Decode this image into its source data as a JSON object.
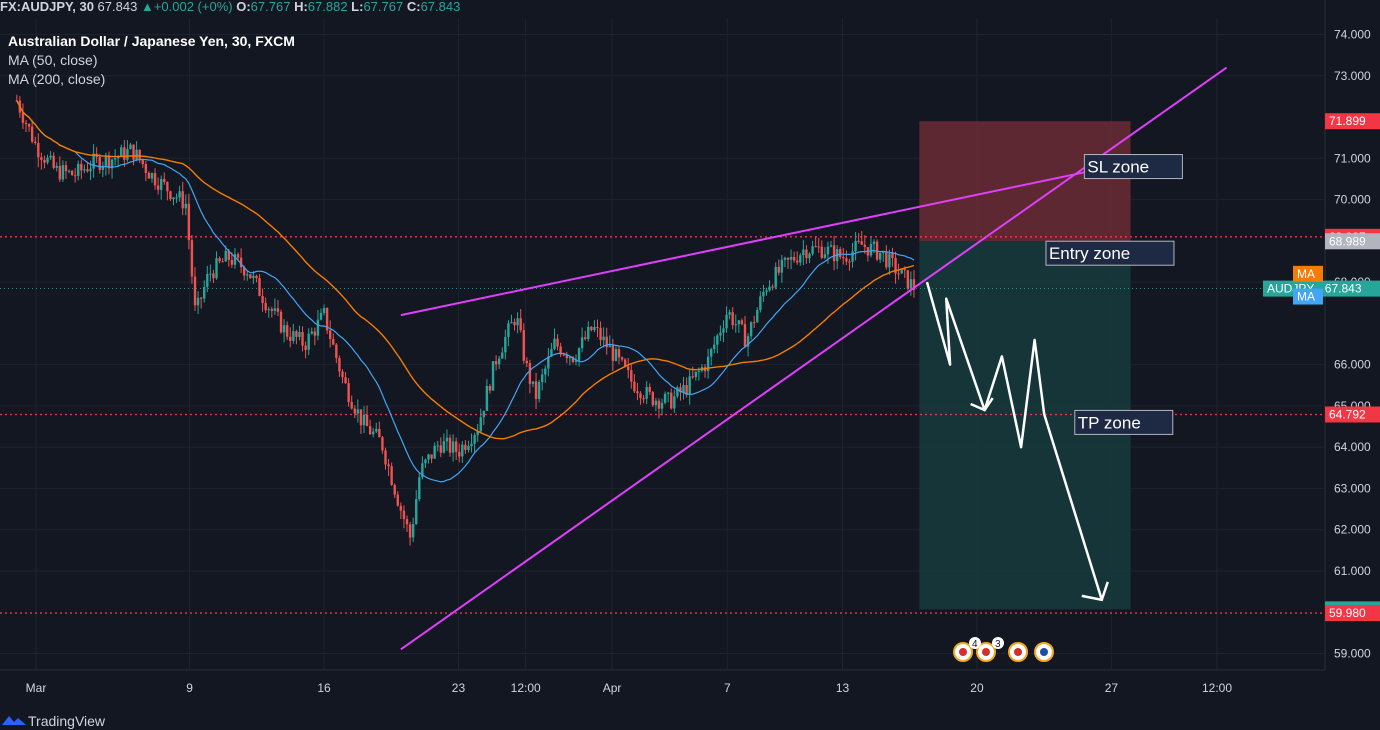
{
  "header": {
    "symbol": "FX:AUDJPY, 30",
    "last": "67.843",
    "change": "+0.002 (+0%)",
    "o_label": "O:",
    "o": "67.767",
    "h_label": "H:",
    "h": "67.882",
    "l_label": "L:",
    "l": "67.767",
    "c_label": "C:",
    "c": "67.843"
  },
  "legend": {
    "title": "Australian Dollar / Japanese Yen, 30, FXCM",
    "ma50": "MA (50, close)",
    "ma200": "MA (200, close)"
  },
  "footer": {
    "brand": "TradingView"
  },
  "colors": {
    "background": "#131722",
    "up": "#26a69a",
    "down": "#ef5350",
    "trendline": "#e040fb",
    "ma50": "#f57c00",
    "ma200": "#42a5f5",
    "level": "#f23645",
    "stop_zone": "#6b2c34",
    "target_zone": "#16393b"
  },
  "chart_data": {
    "type": "candlestick",
    "symbol": "AUDJPY",
    "timeframe": "30",
    "y_range": [
      58.6,
      74.4
    ],
    "y_ticks": [
      "74.000",
      "73.000",
      "71.000",
      "70.000",
      "68.000",
      "66.000",
      "65.000",
      "64.000",
      "63.000",
      "62.000",
      "61.000",
      "59.000"
    ],
    "y_tick_values": [
      74,
      73,
      71,
      70,
      68,
      66,
      65,
      64,
      63,
      62,
      61,
      59
    ],
    "x_ticks": [
      "Mar",
      "9",
      "16",
      "23",
      "12:00",
      "Apr",
      "7",
      "13",
      "20",
      "27",
      "12:00"
    ],
    "x_tick_days": [
      1,
      9,
      16,
      23,
      26.5,
      31,
      37,
      43,
      50,
      57,
      62.5
    ],
    "x_range_days": [
      0,
      68
    ],
    "price_path": [
      [
        0,
        72.4
      ],
      [
        1,
        71.3
      ],
      [
        2,
        70.7
      ],
      [
        3,
        70.6
      ],
      [
        4,
        70.9
      ],
      [
        5,
        71.0
      ],
      [
        6,
        71.2
      ],
      [
        7,
        70.6
      ],
      [
        8,
        70.2
      ],
      [
        8.8,
        69.9
      ],
      [
        9.3,
        67.2
      ],
      [
        10,
        68.2
      ],
      [
        11,
        68.6
      ],
      [
        12,
        68.3
      ],
      [
        13,
        67.5
      ],
      [
        14,
        66.8
      ],
      [
        15,
        66.5
      ],
      [
        16,
        67.2
      ],
      [
        17,
        65.6
      ],
      [
        18,
        64.6
      ],
      [
        19,
        64.1
      ],
      [
        20,
        62.5
      ],
      [
        20.5,
        61.8
      ],
      [
        21,
        63.4
      ],
      [
        22,
        64.1
      ],
      [
        23,
        63.9
      ],
      [
        24,
        64.5
      ],
      [
        25,
        66.2
      ],
      [
        26,
        67.2
      ],
      [
        26.5,
        66.0
      ],
      [
        27,
        65.2
      ],
      [
        28,
        66.5
      ],
      [
        29,
        66.2
      ],
      [
        30,
        66.9
      ],
      [
        31,
        66.3
      ],
      [
        32,
        65.6
      ],
      [
        33,
        65.2
      ],
      [
        34,
        65.1
      ],
      [
        35,
        65.5
      ],
      [
        36,
        66.1
      ],
      [
        37,
        67.3
      ],
      [
        38,
        66.6
      ],
      [
        39,
        67.9
      ],
      [
        40,
        68.4
      ],
      [
        41,
        68.8
      ],
      [
        42,
        68.8
      ],
      [
        43,
        68.6
      ],
      [
        44,
        68.9
      ],
      [
        45,
        68.7
      ],
      [
        46,
        68.2
      ],
      [
        46.8,
        67.84
      ]
    ],
    "ma50_label": "MA",
    "ma200_label": "MA",
    "last_price_label": "AUDJPY",
    "last_price": "67.843",
    "levels": [
      {
        "value": 69.097,
        "label": "69.097",
        "style": "dotted"
      },
      {
        "value": 64.792,
        "label": "64.792",
        "style": "dotted"
      },
      {
        "value": 59.98,
        "label": "59.980",
        "style": "dotted"
      }
    ],
    "position": {
      "stop": 71.899,
      "stop_label": "71.899",
      "entry": 68.989,
      "entry_label": "68.989",
      "target": 60.069,
      "target_label": "60.069",
      "start_day": 47,
      "end_day": 58
    },
    "trendlines": [
      {
        "from": [
          20,
          59.1
        ],
        "to": [
          63,
          73.2
        ]
      },
      {
        "from": [
          20,
          67.2
        ],
        "to": [
          56,
          70.7
        ]
      }
    ],
    "annotations": [
      {
        "text": "SL zone",
        "value": 70.8,
        "day": 57
      },
      {
        "text": "Entry zone",
        "value": 68.7,
        "day": 55
      }
    ],
    "annotation_tp": {
      "text": "TP zone",
      "value": 64.6,
      "day": 56.5
    },
    "projected_path": [
      [
        47.4,
        68.0
      ],
      [
        48.6,
        66.0
      ],
      [
        48.4,
        67.6
      ],
      [
        50.4,
        64.9
      ],
      [
        51.3,
        66.2
      ],
      [
        52.3,
        64.0
      ],
      [
        53.0,
        66.6
      ],
      [
        53.5,
        64.8
      ],
      [
        56.5,
        60.3
      ]
    ],
    "event_badges": [
      "4",
      "3"
    ]
  }
}
